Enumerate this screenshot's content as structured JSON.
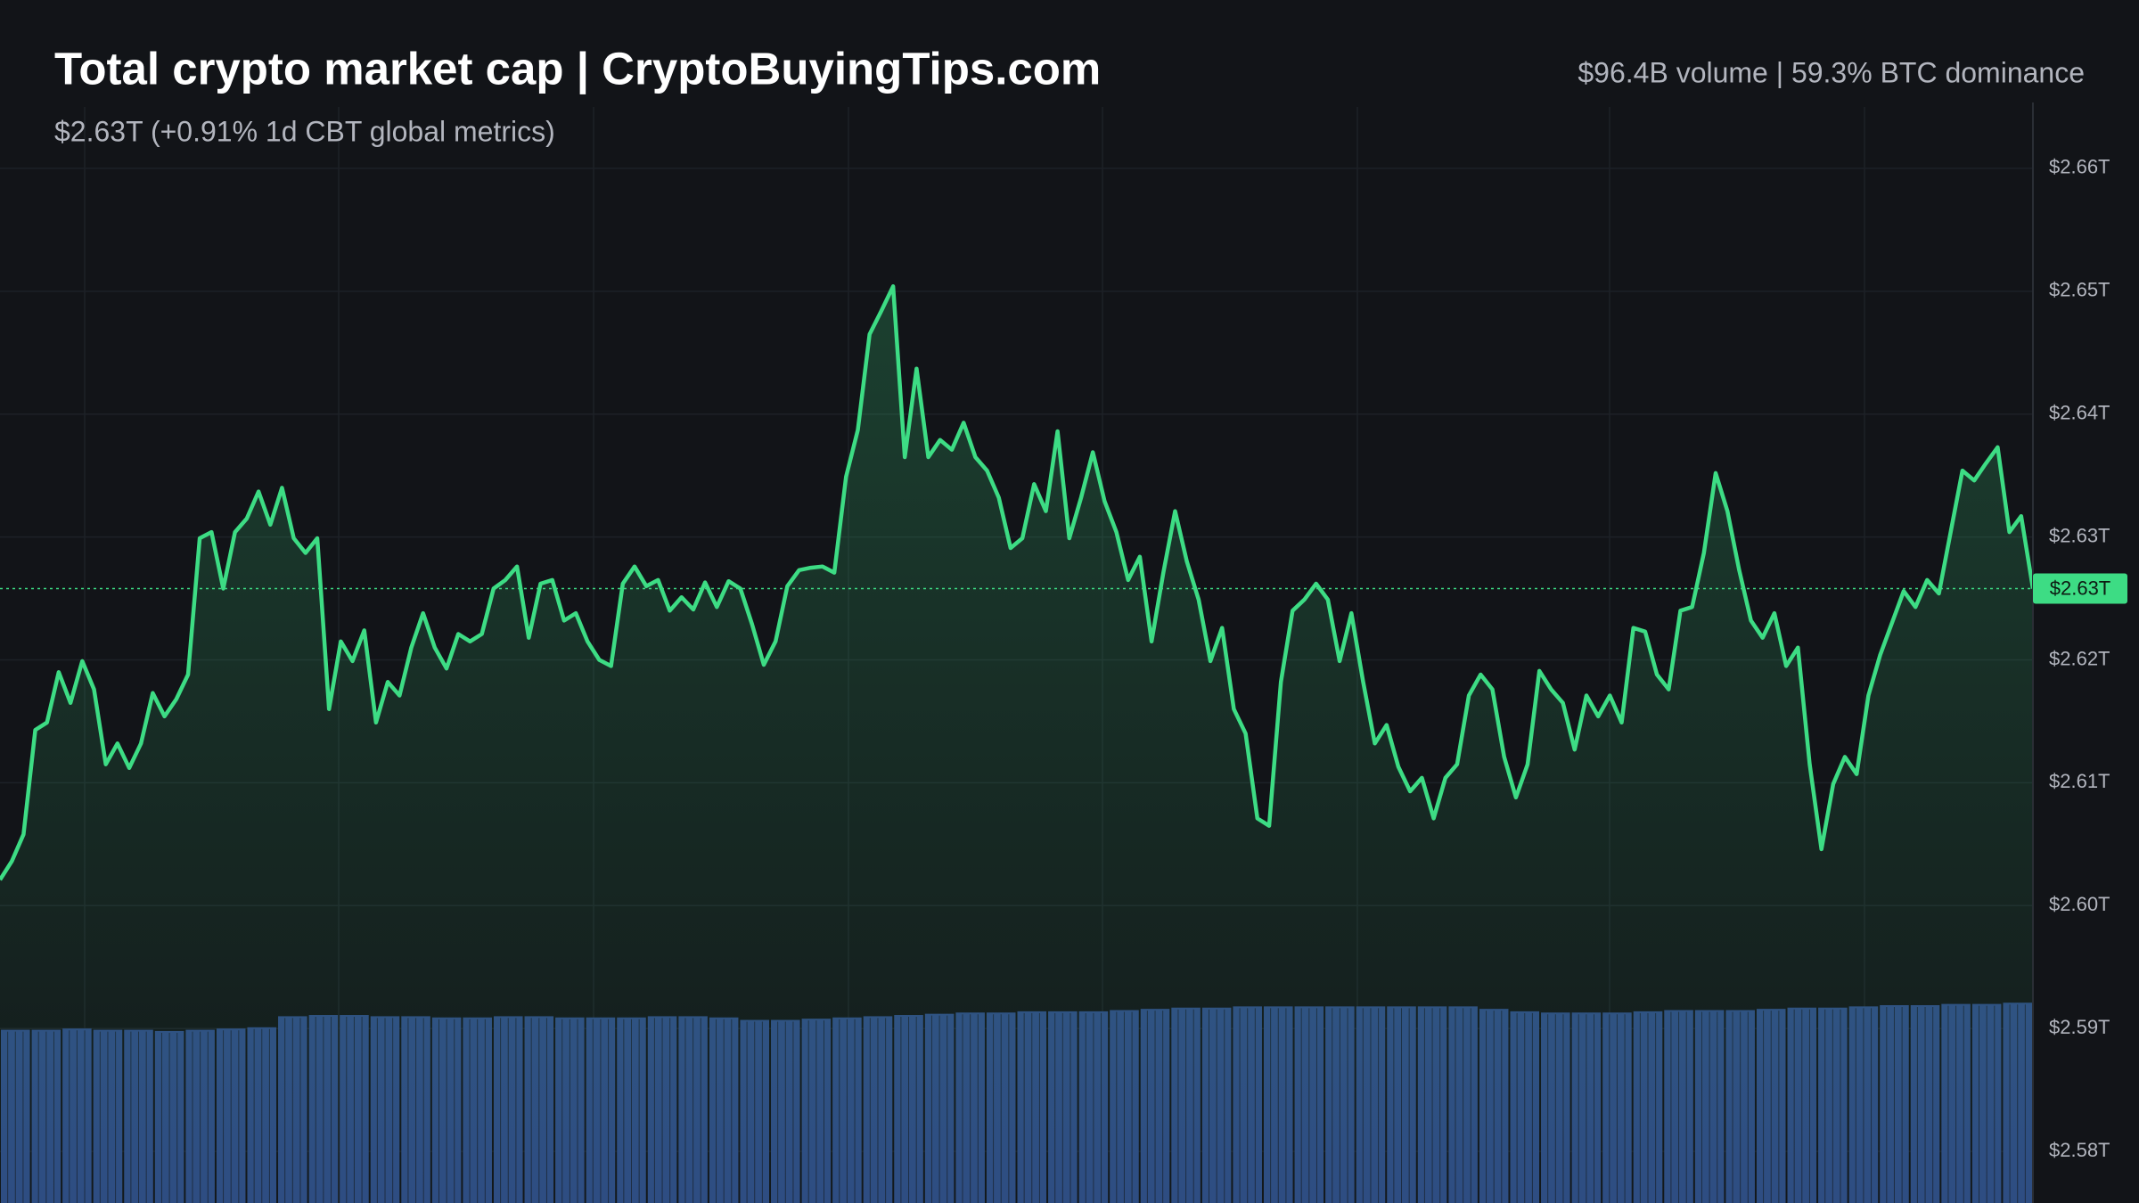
{
  "chart_data": {
    "type": "line",
    "title": "Total crypto market cap | CryptoBuyingTips.com",
    "subtitle": "$2.63T (+0.91% 1d CBT global metrics)",
    "stats": "$96.4B volume | 59.3% BTC dominance",
    "ylim": [
      2.5758,
      2.6737
    ],
    "yticks": [
      {
        "value": 2.66,
        "label": "$2.66T"
      },
      {
        "value": 2.65,
        "label": "$2.65T"
      },
      {
        "value": 2.64,
        "label": "$2.64T"
      },
      {
        "value": 2.63,
        "label": "$2.63T"
      },
      {
        "value": 2.62,
        "label": "$2.62T"
      },
      {
        "value": 2.61,
        "label": "$2.61T"
      },
      {
        "value": 2.6,
        "label": "$2.60T"
      },
      {
        "value": 2.59,
        "label": "$2.59T"
      },
      {
        "value": 2.58,
        "label": "$2.58T"
      }
    ],
    "grid": true,
    "current_price": {
      "value": 2.6258,
      "label": "$2.63T",
      "color": "#3ddc84"
    },
    "series": [
      {
        "type": "bar",
        "color": "#2e4a82",
        "values": [
          2.5899,
          2.5899,
          2.59,
          2.5899,
          2.5899,
          2.5898,
          2.5899,
          2.59,
          2.5901,
          2.591,
          2.5911,
          2.5911,
          2.591,
          2.591,
          2.5909,
          2.5909,
          2.591,
          2.591,
          2.5909,
          2.5909,
          2.5909,
          2.591,
          2.591,
          2.5909,
          2.5907,
          2.5907,
          2.5908,
          2.5909,
          2.591,
          2.5911,
          2.5912,
          2.5913,
          2.5913,
          2.5914,
          2.5914,
          2.5914,
          2.5915,
          2.5916,
          2.5917,
          2.5917,
          2.5918,
          2.5918,
          2.5918,
          2.5918,
          2.5918,
          2.5918,
          2.5918,
          2.5918,
          2.5916,
          2.5914,
          2.5913,
          2.5913,
          2.5913,
          2.5914,
          2.5915,
          2.5915,
          2.5915,
          2.5916,
          2.5917,
          2.5917,
          2.5918,
          2.5919,
          2.5919,
          2.592,
          2.592,
          2.5921
        ]
      },
      {
        "type": "line",
        "color": "#3ddc84",
        "values": [
          2.6021,
          2.6036,
          2.6058,
          2.6143,
          2.6149,
          2.619,
          2.6165,
          2.6199,
          2.6176,
          2.6115,
          2.6132,
          2.6112,
          2.6132,
          2.6173,
          2.6154,
          2.6168,
          2.6188,
          2.6299,
          2.6304,
          2.6258,
          2.6304,
          2.6315,
          2.6337,
          2.631,
          2.634,
          2.6299,
          2.6287,
          2.6299,
          2.616,
          2.6215,
          2.6199,
          2.6224,
          2.6149,
          2.6182,
          2.6171,
          2.621,
          2.6238,
          2.621,
          2.6193,
          2.6221,
          2.6215,
          2.6221,
          2.6258,
          2.6265,
          2.6276,
          2.6218,
          2.6262,
          2.6265,
          2.6232,
          2.6238,
          2.6215,
          2.62,
          2.6195,
          2.6262,
          2.6276,
          2.626,
          2.6265,
          2.624,
          2.6251,
          2.6241,
          2.6263,
          2.6243,
          2.6264,
          2.6258,
          2.6229,
          2.6196,
          2.6215,
          2.626,
          2.6273,
          2.6275,
          2.6276,
          2.6271,
          2.6349,
          2.6387,
          2.6465,
          2.6484,
          2.6504,
          2.6365,
          2.6437,
          2.6365,
          2.6379,
          2.6371,
          2.6393,
          2.6365,
          2.6354,
          2.6332,
          2.6291,
          2.6299,
          2.6343,
          2.6321,
          2.6386,
          2.6299,
          2.6332,
          2.6369,
          2.6329,
          2.6304,
          2.6265,
          2.6284,
          2.6215,
          2.6271,
          2.6321,
          2.628,
          2.6249,
          2.6199,
          2.6226,
          2.616,
          2.614,
          2.6071,
          2.6065,
          2.6182,
          2.624,
          2.6249,
          2.6262,
          2.6249,
          2.6199,
          2.6238,
          2.6182,
          2.6132,
          2.6147,
          2.6113,
          2.6093,
          2.6104,
          2.6071,
          2.6104,
          2.6115,
          2.6171,
          2.6188,
          2.6176,
          2.6121,
          2.6088,
          2.6115,
          2.6191,
          2.6176,
          2.6165,
          2.6127,
          2.6171,
          2.6154,
          2.6171,
          2.6149,
          2.6226,
          2.6223,
          2.6188,
          2.6176,
          2.624,
          2.6243,
          2.6287,
          2.6352,
          2.6321,
          2.6273,
          2.6232,
          2.6218,
          2.6238,
          2.6195,
          2.621,
          2.6115,
          2.6046,
          2.6099,
          2.6121,
          2.6107,
          2.6171,
          2.6204,
          2.623,
          2.6256,
          2.6243,
          2.6265,
          2.6254,
          2.6304,
          2.6354,
          2.6346,
          2.636,
          2.6373,
          2.6304,
          2.6317,
          2.6258
        ]
      }
    ]
  }
}
